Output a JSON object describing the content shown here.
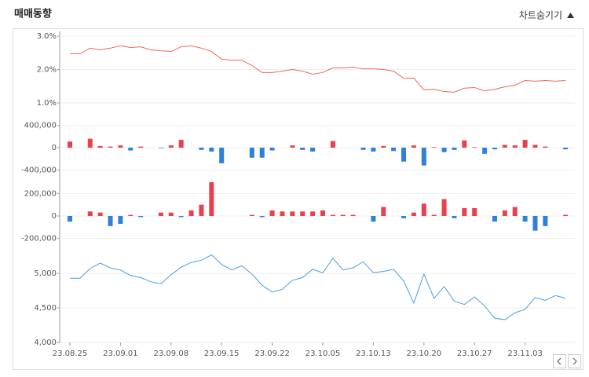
{
  "header": {
    "title": "매매동향",
    "toggle": "차트숨기기"
  },
  "chart_data": [
    {
      "type": "line",
      "color": "#f0665a",
      "ylim": [
        0.8,
        3.1
      ],
      "grid": true,
      "yticks": [
        {
          "value": 3.0,
          "label": "3.0%"
        },
        {
          "value": 2.0,
          "label": "2.0%"
        },
        {
          "value": 1.0,
          "label": "1.0%"
        }
      ],
      "values": [
        2.47,
        2.47,
        2.64,
        2.59,
        2.64,
        2.71,
        2.66,
        2.68,
        2.59,
        2.56,
        2.54,
        2.68,
        2.71,
        2.64,
        2.54,
        2.31,
        2.28,
        2.28,
        2.12,
        1.91,
        1.91,
        1.95,
        2.0,
        1.95,
        1.86,
        1.91,
        2.05,
        2.05,
        2.07,
        2.02,
        2.02,
        2.0,
        1.95,
        1.74,
        1.74,
        1.39,
        1.41,
        1.34,
        1.32,
        1.44,
        1.46,
        1.36,
        1.41,
        1.48,
        1.53,
        1.67,
        1.65,
        1.67,
        1.65,
        1.67
      ]
    },
    {
      "type": "bar",
      "color_up": "#ec3f4c",
      "color_down": "#2f80d9",
      "ylim": [
        -500000,
        500000
      ],
      "grid": true,
      "yticks": [
        {
          "value": 400000,
          "label": "400,000"
        },
        0,
        {
          "value": -400000,
          "label": "-400,000"
        }
      ],
      "values": [
        110000,
        0,
        160000,
        30000,
        20000,
        40000,
        -50000,
        20000,
        0,
        -10000,
        40000,
        140000,
        0,
        -40000,
        -70000,
        -280000,
        0,
        0,
        -180000,
        -180000,
        -50000,
        0,
        40000,
        -40000,
        -70000,
        0,
        120000,
        0,
        0,
        -40000,
        -70000,
        30000,
        -60000,
        -250000,
        40000,
        -320000,
        10000,
        -80000,
        -40000,
        130000,
        10000,
        -110000,
        -30000,
        50000,
        40000,
        140000,
        50000,
        20000,
        0,
        -30000
      ]
    },
    {
      "type": "bar",
      "color_up": "#ec3f4c",
      "color_down": "#2f80d9",
      "ylim": [
        -300000,
        300000
      ],
      "grid": true,
      "yticks": [
        {
          "value": 200000,
          "label": "200,000"
        },
        0,
        {
          "value": -200000,
          "label": "-200,000"
        }
      ],
      "values": [
        -50000,
        0,
        40000,
        30000,
        -90000,
        -70000,
        10000,
        -10000,
        0,
        30000,
        30000,
        -10000,
        50000,
        100000,
        300000,
        0,
        0,
        0,
        10000,
        -10000,
        50000,
        40000,
        40000,
        40000,
        40000,
        50000,
        10000,
        10000,
        10000,
        0,
        -50000,
        80000,
        0,
        -20000,
        30000,
        110000,
        10000,
        150000,
        -20000,
        70000,
        70000,
        0,
        -50000,
        50000,
        80000,
        -50000,
        -130000,
        -90000,
        0,
        10000
      ]
    },
    {
      "type": "line",
      "color": "#4a9ee0",
      "ylim": [
        4000,
        5400
      ],
      "grid": true,
      "yticks": [
        {
          "value": 5000,
          "label": "5,000"
        },
        {
          "value": 4500,
          "label": "4,500"
        },
        {
          "value": 4000,
          "label": "4,000"
        }
      ],
      "categories": [
        "23.08.25",
        null,
        null,
        null,
        null,
        "23.09.01",
        null,
        null,
        null,
        null,
        "23.09.08",
        null,
        null,
        null,
        null,
        "23.09.15",
        null,
        null,
        null,
        null,
        "23.09.22",
        null,
        null,
        null,
        null,
        "23.10.05",
        null,
        null,
        null,
        null,
        "23.10.13",
        null,
        null,
        null,
        null,
        "23.10.20",
        null,
        null,
        null,
        null,
        "23.10.27",
        null,
        null,
        null,
        null,
        "23.11.03",
        null,
        null,
        null,
        null
      ],
      "values": [
        4930,
        4930,
        5070,
        5150,
        5080,
        5050,
        4970,
        4940,
        4880,
        4850,
        4980,
        5090,
        5160,
        5190,
        5270,
        5130,
        5050,
        5110,
        4990,
        4830,
        4730,
        4770,
        4900,
        4940,
        5060,
        5010,
        5220,
        5050,
        5080,
        5170,
        5010,
        5030,
        5060,
        4890,
        4570,
        4990,
        4640,
        4810,
        4600,
        4550,
        4660,
        4530,
        4350,
        4330,
        4430,
        4480,
        4650,
        4610,
        4680,
        4640
      ]
    }
  ]
}
